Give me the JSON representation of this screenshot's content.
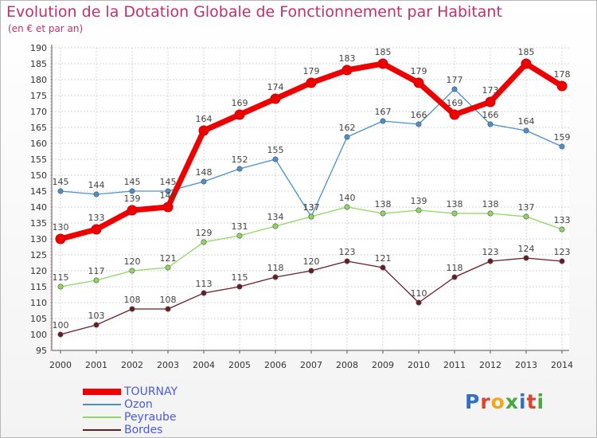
{
  "title": "Evolution de la Dotation Globale de Fonctionnement par Habitant",
  "subtitle": "(en € et par an)",
  "logo": "Proxiti",
  "chart_data": {
    "type": "line",
    "title": "Evolution de la Dotation Globale de Fonctionnement par Habitant",
    "ylabel": "(en € et par an)",
    "x": [
      "2000",
      "2001",
      "2002",
      "2003",
      "2004",
      "2005",
      "2006",
      "2007",
      "2008",
      "2009",
      "2010",
      "2011",
      "2012",
      "2013",
      "2014"
    ],
    "ylim": [
      95,
      190
    ],
    "yticks": [
      95,
      100,
      105,
      110,
      115,
      120,
      125,
      130,
      135,
      140,
      145,
      150,
      155,
      160,
      165,
      170,
      175,
      180,
      185,
      190
    ],
    "legend_position": "bottom-left",
    "series": [
      {
        "name": "TOURNAY",
        "color": "#ee0000",
        "values": [
          130,
          133,
          139,
          140,
          164,
          169,
          174,
          179,
          183,
          185,
          179,
          169,
          173,
          185,
          178
        ]
      },
      {
        "name": "Ozon",
        "color": "#4a8fd0",
        "values": [
          145,
          144,
          145,
          145,
          148,
          152,
          155,
          137,
          162,
          167,
          166,
          177,
          166,
          164,
          159
        ]
      },
      {
        "name": "Peyraube",
        "color": "#8ed862",
        "values": [
          115,
          117,
          120,
          121,
          129,
          131,
          134,
          137,
          140,
          138,
          139,
          138,
          138,
          137,
          133
        ]
      },
      {
        "name": "Bordes",
        "color": "#6a1c24",
        "values": [
          100,
          103,
          108,
          108,
          113,
          115,
          118,
          120,
          123,
          121,
          110,
          118,
          123,
          124,
          123
        ]
      }
    ]
  }
}
